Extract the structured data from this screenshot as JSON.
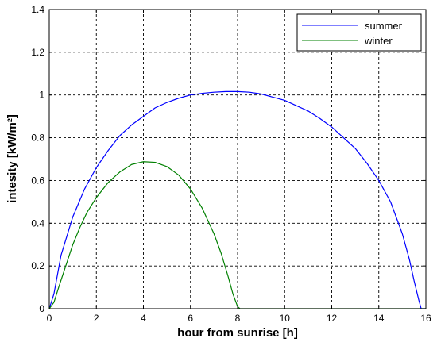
{
  "chart_data": {
    "type": "line",
    "xlabel": "hour from sunrise [h]",
    "ylabel": "intesity [kW/m²]",
    "xlim": [
      0,
      16
    ],
    "ylim": [
      0,
      1.4
    ],
    "xticks": [
      "0",
      "2",
      "4",
      "6",
      "8",
      "10",
      "12",
      "14",
      "16"
    ],
    "yticks": [
      "0",
      "0.2",
      "0.4",
      "0.6",
      "0.8",
      "1",
      "1.2",
      "1.4"
    ],
    "grid": true,
    "legend_position": "top-right",
    "series": [
      {
        "name": "summer",
        "color": "#0000ff",
        "x": [
          0,
          0.2,
          0.5,
          1,
          1.5,
          2,
          2.5,
          3,
          3.5,
          4,
          4.5,
          5,
          5.5,
          6,
          6.5,
          7,
          7.5,
          8,
          8.5,
          9,
          9.5,
          10,
          10.5,
          11,
          11.5,
          12,
          12.5,
          13,
          13.5,
          14,
          14.5,
          15,
          15.3,
          15.5,
          15.7,
          15.8,
          16
        ],
        "y": [
          0,
          0.07,
          0.25,
          0.43,
          0.56,
          0.66,
          0.74,
          0.81,
          0.86,
          0.9,
          0.94,
          0.965,
          0.985,
          1.0,
          1.008,
          1.013,
          1.016,
          1.016,
          1.013,
          1.005,
          0.99,
          0.975,
          0.95,
          0.925,
          0.89,
          0.85,
          0.8,
          0.75,
          0.68,
          0.6,
          0.5,
          0.35,
          0.23,
          0.13,
          0.04,
          0,
          0
        ]
      },
      {
        "name": "winter",
        "color": "#008000",
        "x": [
          0,
          0.2,
          0.4,
          0.7,
          1,
          1.3,
          1.6,
          2,
          2.5,
          3,
          3.5,
          4,
          4.5,
          5,
          5.5,
          6,
          6.5,
          7,
          7.3,
          7.6,
          7.8,
          8,
          8.1,
          9,
          10,
          11,
          12,
          13,
          14,
          15,
          16
        ],
        "y": [
          0,
          0.03,
          0.1,
          0.2,
          0.3,
          0.38,
          0.45,
          0.52,
          0.59,
          0.64,
          0.675,
          0.688,
          0.685,
          0.665,
          0.625,
          0.56,
          0.47,
          0.35,
          0.26,
          0.15,
          0.07,
          0.01,
          0,
          0,
          0,
          0,
          0,
          0,
          0,
          0,
          0
        ]
      }
    ]
  }
}
